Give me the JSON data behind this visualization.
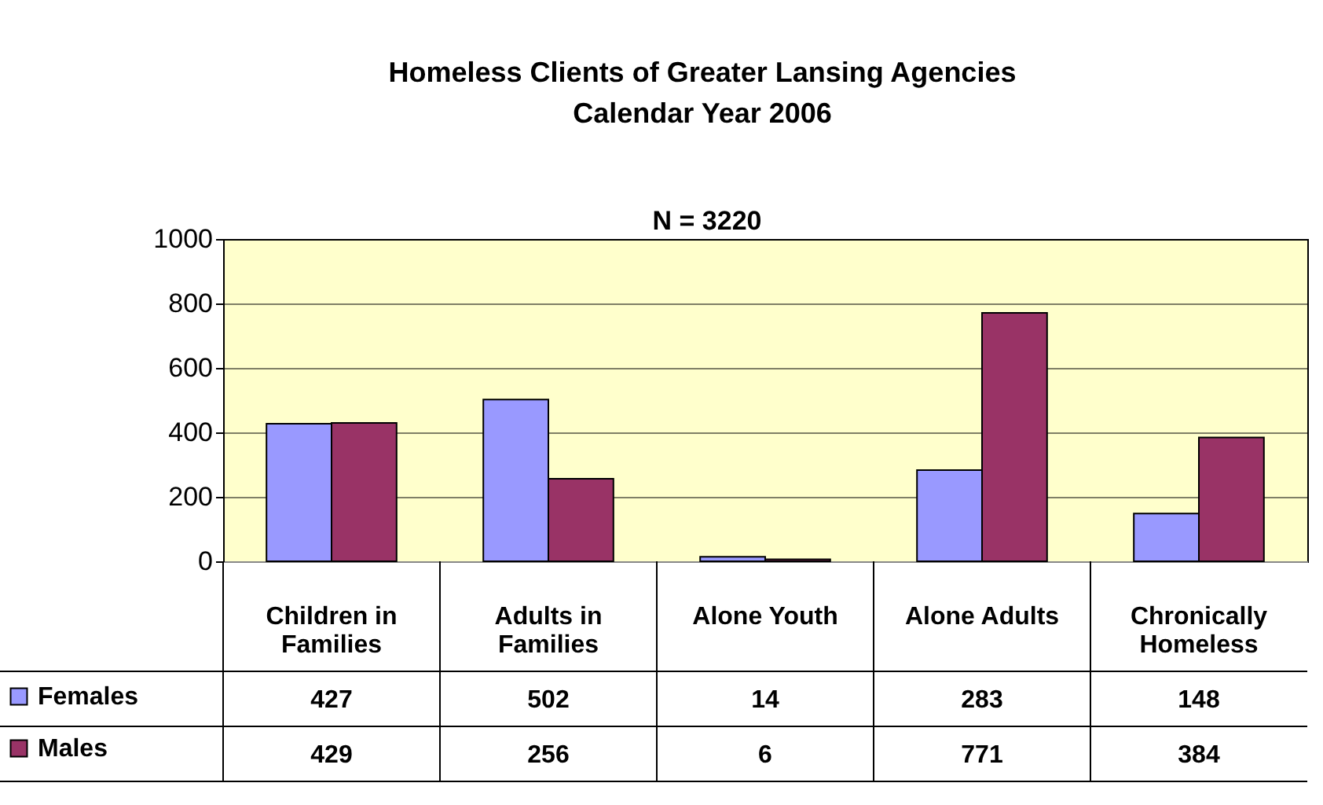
{
  "chart_data": {
    "type": "bar",
    "title": "Homeless Clients of Greater Lansing Agencies",
    "subtitle": "Calendar Year 2006",
    "annotations": [
      "N = 3220"
    ],
    "categories": [
      "Children in Families",
      "Adults in Families",
      "Alone Youth",
      "Alone Adults",
      "Chronically Homeless"
    ],
    "series": [
      {
        "name": "Females",
        "color": "#9999ff",
        "values": [
          427,
          502,
          14,
          283,
          148
        ]
      },
      {
        "name": "Males",
        "color": "#993366",
        "values": [
          429,
          256,
          6,
          771,
          384
        ]
      }
    ],
    "ylim": [
      0,
      1000
    ],
    "yticks": [
      0,
      200,
      400,
      600,
      800,
      {
        "value": 1000,
        "label": "1000"
      }
    ],
    "grid": "y",
    "legend": "bottom left",
    "data_labels": true
  }
}
